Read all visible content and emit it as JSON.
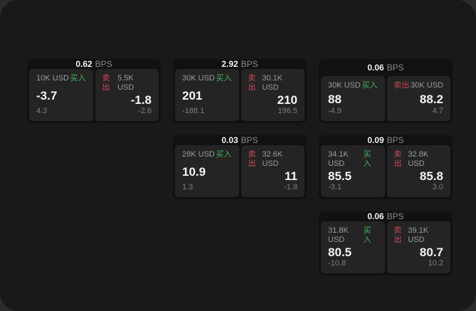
{
  "labels": {
    "bps_unit": "BPS",
    "buy": "买入",
    "sell": "卖出"
  },
  "colors": {
    "buy_green": "#42b35d",
    "sell_red": "#c9475c",
    "panel_background": "#191919",
    "card_background": "#111111",
    "subpanel_background": "#242424"
  },
  "cards": [
    {
      "col": 1,
      "row": 1,
      "bps": "0.62",
      "buy": {
        "size": "10K USD",
        "value": "-3.7",
        "change": "4.3"
      },
      "sell": {
        "size": "5.5K USD",
        "value": "-1.8",
        "change": "-2.6"
      }
    },
    {
      "col": 2,
      "row": 1,
      "bps": "2.92",
      "buy": {
        "size": "30K USD",
        "value": "201",
        "change": "-188.1"
      },
      "sell": {
        "size": "30.1K USD",
        "value": "210",
        "change": "196.5"
      }
    },
    {
      "col": 3,
      "row": 1,
      "bps": "0.06",
      "buy": {
        "size": "30K USD",
        "value": "88",
        "change": "-4.9"
      },
      "sell": {
        "size": "30K USD",
        "value": "88.2",
        "change": "4.7"
      }
    },
    {
      "col": 2,
      "row": 2,
      "bps": "0.03",
      "buy": {
        "size": "28K USD",
        "value": "10.9",
        "change": "1.3"
      },
      "sell": {
        "size": "32.6K USD",
        "value": "11",
        "change": "-1.8"
      }
    },
    {
      "col": 3,
      "row": 2,
      "bps": "0.09",
      "buy": {
        "size": "34.1K USD",
        "value": "85.5",
        "change": "-3.1"
      },
      "sell": {
        "size": "32.8K USD",
        "value": "85.8",
        "change": "3.0"
      }
    },
    {
      "col": 3,
      "row": 3,
      "bps": "0.06",
      "buy": {
        "size": "31.8K USD",
        "value": "80.5",
        "change": "-10.8"
      },
      "sell": {
        "size": "39.1K USD",
        "value": "80.7",
        "change": "10.2"
      }
    }
  ]
}
